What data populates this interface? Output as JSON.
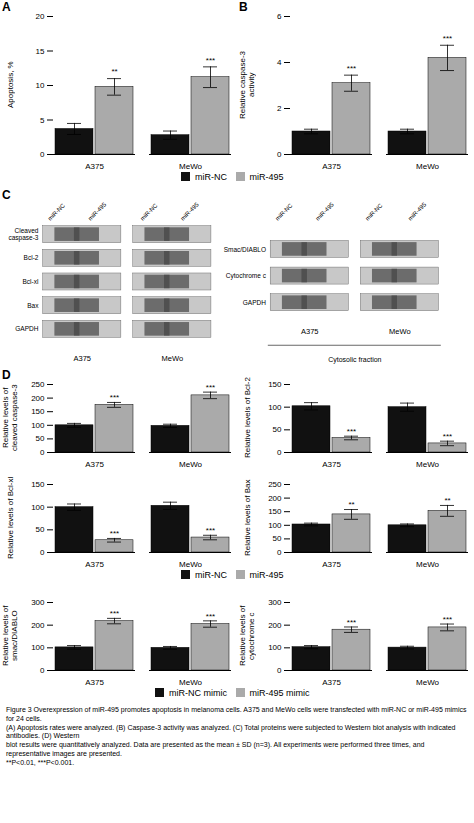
{
  "chart_data": [
    {
      "type": "bar",
      "title": "A",
      "ylabel": "Apoptosis, %",
      "categories": [
        "A375",
        "MeWo"
      ],
      "series": [
        {
          "name": "miR-NC",
          "color": "#111111",
          "values": [
            3.7,
            2.8
          ],
          "errors": [
            0.8,
            0.6
          ]
        },
        {
          "name": "miR-495",
          "color": "#aaaaaa",
          "values": [
            9.8,
            11.2
          ],
          "errors": [
            1.2,
            1.5
          ]
        }
      ],
      "ylim": [
        0,
        20
      ],
      "yticks": [
        0,
        5,
        10,
        15,
        20
      ],
      "annotations": [
        {
          "category": "A375",
          "series": "miR-495",
          "text": "**"
        },
        {
          "category": "MeWo",
          "series": "miR-495",
          "text": "***"
        }
      ]
    },
    {
      "type": "bar",
      "title": "B",
      "ylabel": "Relative caspase-3\nactivity",
      "categories": [
        "A375",
        "MeWo"
      ],
      "series": [
        {
          "name": "miR-NC",
          "color": "#111111",
          "values": [
            1.0,
            1.0
          ],
          "errors": [
            0.1,
            0.1
          ]
        },
        {
          "name": "miR-495",
          "color": "#aaaaaa",
          "values": [
            3.1,
            4.2
          ],
          "errors": [
            0.35,
            0.55
          ]
        }
      ],
      "ylim": [
        0,
        6
      ],
      "yticks": [
        0,
        2,
        4,
        6
      ],
      "legend": "bottom",
      "annotations": [
        {
          "category": "A375",
          "series": "miR-495",
          "text": "***"
        },
        {
          "category": "MeWo",
          "series": "miR-495",
          "text": "***"
        }
      ]
    },
    {
      "type": "blot",
      "title": "C",
      "sections": [
        {
          "columns": [
            "miR-NC",
            "miR-495",
            "miR-NC",
            "miR-495"
          ],
          "rows": [
            "Cleaved\ncaspase-3",
            "Bcl-2",
            "Bcl-xl",
            "Bax",
            "GAPDH"
          ],
          "groups": [
            "A375",
            "MeWo"
          ]
        },
        {
          "columns": [
            "miR-NC",
            "miR-495",
            "miR-NC",
            "miR-495"
          ],
          "rows": [
            "Smac/DIABLO",
            "Cytochrome c",
            "GAPDH"
          ],
          "groups": [
            "A375",
            "MeWo"
          ],
          "annotations": [
            "Cytosolic fraction"
          ]
        }
      ]
    },
    {
      "type": "bar",
      "title": "D",
      "ylabel": "Relative levels of\ncleaved caspase-3",
      "categories": [
        "A375",
        "MeWo"
      ],
      "series": [
        {
          "name": "miR-NC",
          "color": "#111111",
          "values": [
            100,
            98
          ],
          "errors": [
            7,
            6
          ]
        },
        {
          "name": "miR-495",
          "color": "#aaaaaa",
          "values": [
            175,
            210
          ],
          "errors": [
            9,
            12
          ]
        }
      ],
      "ylim": [
        0,
        250
      ],
      "yticks": [
        0,
        50,
        100,
        150,
        200,
        250
      ],
      "annotations": [
        {
          "category": "A375",
          "series": "miR-495",
          "text": "***"
        },
        {
          "category": "MeWo",
          "series": "miR-495",
          "text": "***"
        }
      ]
    },
    {
      "type": "bar",
      "ylabel": "Relative levels of Bcl-2",
      "categories": [
        "A375",
        "MeWo"
      ],
      "series": [
        {
          "name": "miR-NC",
          "color": "#111111",
          "values": [
            102,
            100
          ],
          "errors": [
            8,
            9
          ]
        },
        {
          "name": "miR-495",
          "color": "#aaaaaa",
          "values": [
            32,
            20
          ],
          "errors": [
            4,
            5
          ]
        }
      ],
      "ylim": [
        0,
        150
      ],
      "yticks": [
        0,
        50,
        100,
        150
      ],
      "annotations": [
        {
          "category": "A375",
          "series": "miR-495",
          "text": "***"
        },
        {
          "category": "MeWo",
          "series": "miR-495",
          "text": "***"
        }
      ]
    },
    {
      "type": "bar",
      "ylabel": "Relative levels of Bcl-xl",
      "categories": [
        "A375",
        "MeWo"
      ],
      "series": [
        {
          "name": "miR-NC",
          "color": "#111111",
          "values": [
            100,
            103
          ],
          "errors": [
            7,
            8
          ]
        },
        {
          "name": "miR-495",
          "color": "#aaaaaa",
          "values": [
            27,
            33
          ],
          "errors": [
            4,
            5
          ]
        }
      ],
      "ylim": [
        0,
        150
      ],
      "yticks": [
        0,
        50,
        100,
        150
      ],
      "annotations": [
        {
          "category": "A375",
          "series": "miR-495",
          "text": "***"
        },
        {
          "category": "MeWo",
          "series": "miR-495",
          "text": "***"
        }
      ]
    },
    {
      "type": "bar",
      "ylabel": "Relative levels of Bax",
      "categories": [
        "A375",
        "MeWo"
      ],
      "series": [
        {
          "name": "miR-NC",
          "color": "#111111",
          "values": [
            103,
            100
          ],
          "errors": [
            5,
            5
          ]
        },
        {
          "name": "miR-495",
          "color": "#aaaaaa",
          "values": [
            140,
            153
          ],
          "errors": [
            18,
            20
          ]
        }
      ],
      "ylim": [
        0,
        250
      ],
      "yticks": [
        0,
        50,
        100,
        150,
        200,
        250
      ],
      "legend": "bottom",
      "annotations": [
        {
          "category": "A375",
          "series": "miR-495",
          "text": "**"
        },
        {
          "category": "MeWo",
          "series": "miR-495",
          "text": "**"
        }
      ]
    },
    {
      "type": "bar",
      "ylabel": "Relative levels of\nsmac/DIABLO",
      "categories": [
        "A375",
        "MeWo"
      ],
      "series": [
        {
          "name": "miR-NC mimic",
          "color": "#111111",
          "values": [
            102,
            100
          ],
          "errors": [
            8,
            6
          ]
        },
        {
          "name": "miR-495 mimic",
          "color": "#aaaaaa",
          "values": [
            218,
            205
          ],
          "errors": [
            12,
            14
          ]
        }
      ],
      "ylim": [
        0,
        300
      ],
      "yticks": [
        0,
        100,
        200,
        300
      ],
      "annotations": [
        {
          "category": "A375",
          "series": "miR-495 mimic",
          "text": "***"
        },
        {
          "category": "MeWo",
          "series": "miR-495 mimic",
          "text": "***"
        }
      ]
    },
    {
      "type": "bar",
      "ylabel": "Relative levels of\ncytochrome c",
      "categories": [
        "A375",
        "MeWo"
      ],
      "series": [
        {
          "name": "miR-NC mimic",
          "color": "#111111",
          "values": [
            103,
            101
          ],
          "errors": [
            7,
            6
          ]
        },
        {
          "name": "miR-495 mimic",
          "color": "#aaaaaa",
          "values": [
            180,
            190
          ],
          "errors": [
            12,
            15
          ]
        }
      ],
      "ylim": [
        0,
        300
      ],
      "yticks": [
        0,
        100,
        200,
        300
      ],
      "legend": "bottom",
      "annotations": [
        {
          "category": "A375",
          "series": "miR-495 mimic",
          "text": "***"
        },
        {
          "category": "MeWo",
          "series": "miR-495 mimic",
          "text": "***"
        }
      ]
    }
  ],
  "caption": "Figure 3 Overexpression of miR-495 promotes apoptosis in melanoma cells. A375 and MeWo cells were transfected with miR-NC or miR-495 mimics for 24 cells.\n(A) Apoptosis rates were analyzed. (B) Caspase-3 activity was analyzed. (C) Total proteins were subjected to Western blot analysis with indicated antibodies. (D) Western\nblot results were quantitatively analyzed. Data are presented as the mean ± SD (n=3). All experiments were performed three times, and representative images are presented.\n**P<0.01, ***P<0.001."
}
